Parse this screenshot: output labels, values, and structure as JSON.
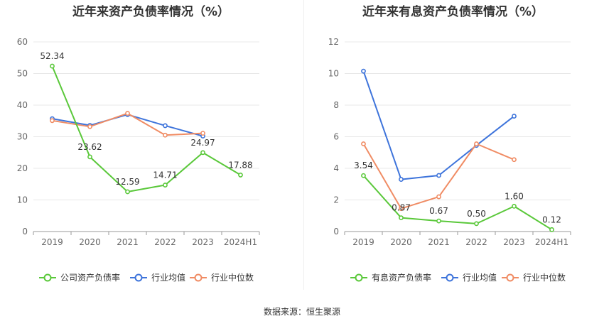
{
  "source": "数据来源：恒生聚源",
  "colors": {
    "company": "#5ac83a",
    "avg": "#3e74db",
    "median": "#f08c64",
    "grid": "#e8e8e8",
    "axis": "#999999",
    "text": "#666666",
    "label": "#333333"
  },
  "chart_data": [
    {
      "type": "line",
      "title": "近年来资产负债率情况（%）",
      "categories": [
        "2019",
        "2020",
        "2021",
        "2022",
        "2023",
        "2024H1"
      ],
      "ylim": [
        0,
        60
      ],
      "yticks": [
        0,
        10,
        20,
        30,
        40,
        50,
        60
      ],
      "grid": true,
      "legend_position": "bottom",
      "series": [
        {
          "name": "公司资产负债率",
          "color": "#5ac83a",
          "values": [
            52.34,
            23.62,
            12.59,
            14.71,
            24.97,
            17.88
          ],
          "labels": [
            "52.34",
            "23.62",
            "12.59",
            "14.71",
            "24.97",
            "17.88"
          ]
        },
        {
          "name": "行业均值",
          "color": "#3e74db",
          "values": [
            35.7,
            33.6,
            37.0,
            33.5,
            30.2,
            null
          ]
        },
        {
          "name": "行业中位数",
          "color": "#f08c64",
          "values": [
            35.1,
            33.2,
            37.4,
            30.5,
            31.1,
            null
          ]
        }
      ]
    },
    {
      "type": "line",
      "title": "近年来有息资产负债率情况（%）",
      "categories": [
        "2019",
        "2020",
        "2021",
        "2022",
        "2023",
        "2024H1"
      ],
      "ylim": [
        0,
        12
      ],
      "yticks": [
        0,
        2,
        4,
        6,
        8,
        10,
        12
      ],
      "grid": true,
      "legend_position": "bottom",
      "series": [
        {
          "name": "有息资产负债率",
          "color": "#5ac83a",
          "values": [
            3.54,
            0.87,
            0.67,
            0.5,
            1.6,
            0.12
          ],
          "labels": [
            "3.54",
            "0.87",
            "0.67",
            "0.50",
            "1.60",
            "0.12"
          ]
        },
        {
          "name": "行业均值",
          "color": "#3e74db",
          "values": [
            10.15,
            3.3,
            3.55,
            5.45,
            7.3,
            null
          ]
        },
        {
          "name": "行业中位数",
          "color": "#f08c64",
          "values": [
            5.55,
            1.45,
            2.2,
            5.55,
            4.55,
            null
          ]
        }
      ]
    }
  ]
}
